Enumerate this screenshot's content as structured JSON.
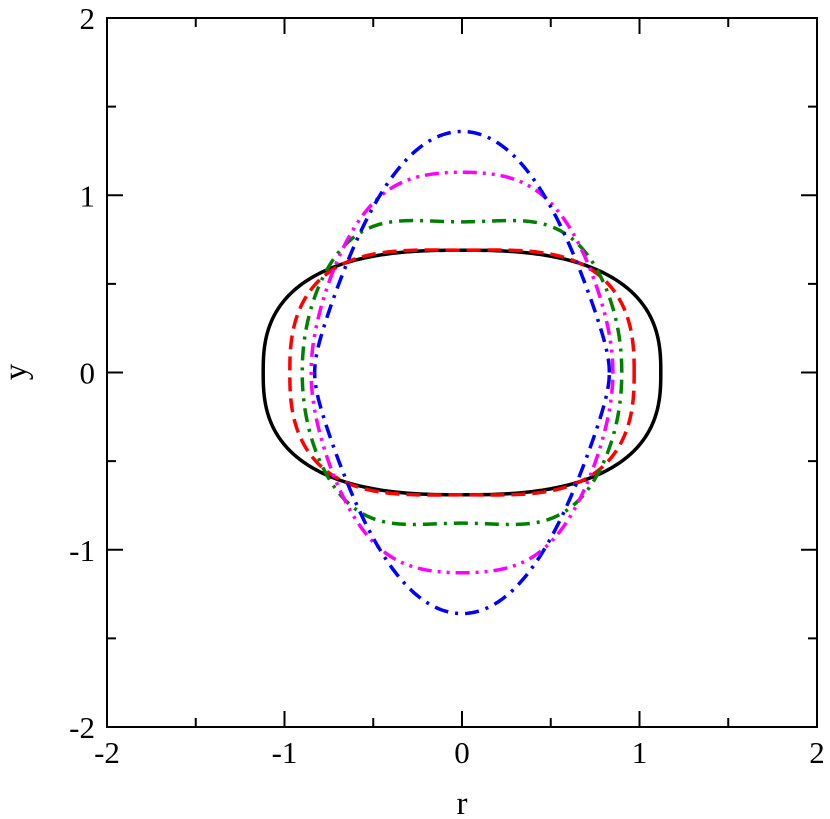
{
  "chart_data": {
    "type": "line",
    "title": "",
    "xlabel": "r",
    "ylabel": "y",
    "xlim": [
      -2,
      2
    ],
    "ylim": [
      -2,
      2
    ],
    "xticks": [
      "-2",
      "-1",
      "0",
      "1",
      "2"
    ],
    "yticks": [
      "-2",
      "-1",
      "0",
      "1",
      "2"
    ],
    "grid": false,
    "legend": "none",
    "series": [
      {
        "color": "#000000",
        "dash": "solid",
        "shape": {
          "a": 1.12,
          "b": 0.69,
          "c2": 0.0,
          "c4": 0.0,
          "p": 2.6
        }
      },
      {
        "color": "#ff0000",
        "dash": "dashed",
        "shape": {
          "a": 0.97,
          "b": 0.69,
          "c2": 0.2,
          "c4": -0.1,
          "p": 2.6
        }
      },
      {
        "color": "#008000",
        "dash": "dash-dot",
        "shape": {
          "a": 0.9,
          "b": 0.85,
          "c2": 0.72,
          "c4": -0.6,
          "p": 2.1
        }
      },
      {
        "color": "#ff00ff",
        "dash": "dash-dot-dot",
        "shape": {
          "a": 0.85,
          "b": 1.13,
          "c2": 0.4,
          "c4": -0.85,
          "p": 2.0
        }
      },
      {
        "color": "#0000ff",
        "dash": "dash-dot",
        "shape": {
          "a": 0.83,
          "b": 1.36,
          "c2": -0.42,
          "c4": -0.55,
          "p": 2.0
        }
      }
    ]
  }
}
